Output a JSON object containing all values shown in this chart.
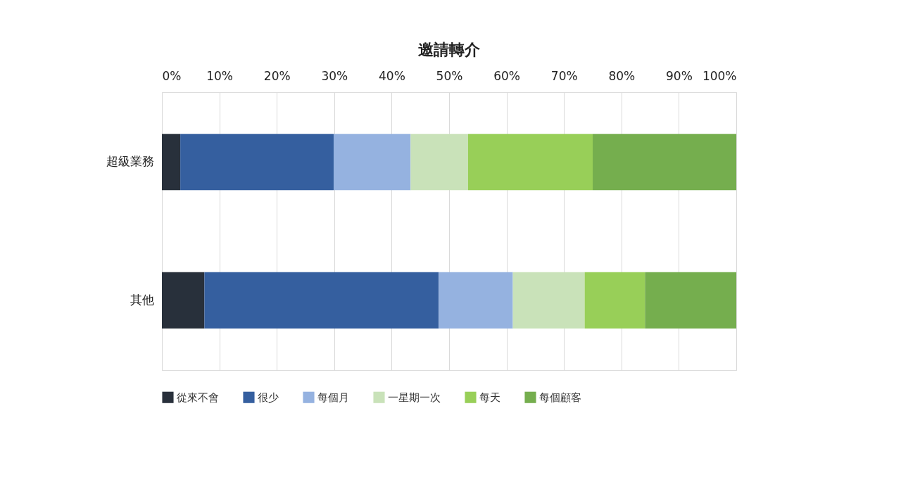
{
  "chart_data": {
    "type": "bar",
    "orientation": "horizontal",
    "stacked": true,
    "title": "邀請轉介",
    "categories": [
      "超級業務",
      "其他"
    ],
    "series": [
      {
        "name": "從來不會",
        "color": "#28303b",
        "values": [
          3.2,
          7.4
        ]
      },
      {
        "name": "很少",
        "color": "#355f9f",
        "values": [
          26.7,
          40.8
        ]
      },
      {
        "name": "每個月",
        "color": "#95b2e0",
        "values": [
          13.4,
          12.9
        ]
      },
      {
        "name": "一星期一次",
        "color": "#c9e2b9",
        "values": [
          10.0,
          12.5
        ]
      },
      {
        "name": "每天",
        "color": "#98cf58",
        "values": [
          21.7,
          10.5
        ]
      },
      {
        "name": "每個顧客",
        "color": "#75ae4e",
        "values": [
          25.0,
          15.9
        ]
      }
    ],
    "xlim": [
      0,
      100
    ],
    "xticks": [
      {
        "value": 0,
        "label": "0%"
      },
      {
        "value": 10,
        "label": "10%"
      },
      {
        "value": 20,
        "label": "20%"
      },
      {
        "value": 30,
        "label": "30%"
      },
      {
        "value": 40,
        "label": "40%"
      },
      {
        "value": 50,
        "label": "50%"
      },
      {
        "value": 60,
        "label": "60%"
      },
      {
        "value": 70,
        "label": "70%"
      },
      {
        "value": 80,
        "label": "80%"
      },
      {
        "value": 90,
        "label": "90%"
      },
      {
        "value": 100,
        "label": "100%"
      }
    ],
    "grid": "x",
    "legend": "bottom"
  }
}
